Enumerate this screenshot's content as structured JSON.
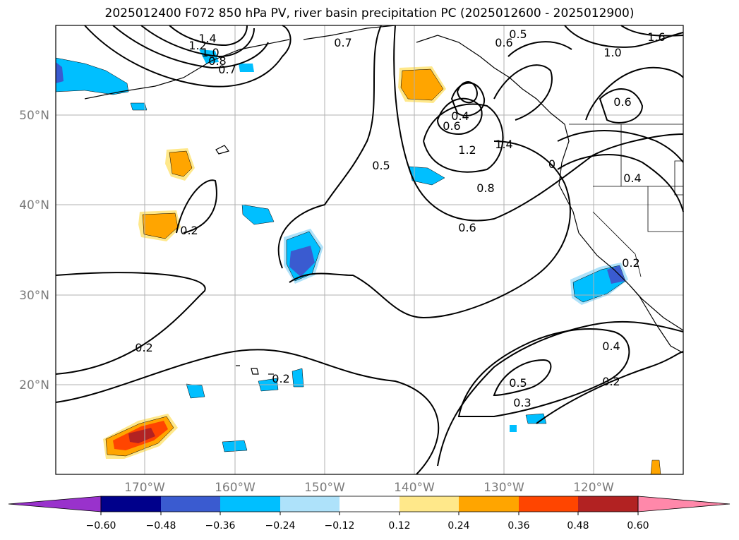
{
  "title": "2025012400 F072 850 hPa PV, river basin precipitation PC (2025012600 - 2025012900)",
  "lat_labels": [
    "50°N",
    "40°N",
    "30°N",
    "20°N"
  ],
  "lon_labels": [
    "170°W",
    "160°W",
    "150°W",
    "140°W",
    "130°W",
    "120°W"
  ],
  "contour_labels": [
    "1.4",
    "1.2",
    "1.0",
    "0.8",
    "0.7",
    "0.7",
    "0.5",
    "0.6",
    "1.0",
    "1.6",
    "0.6",
    "0.4",
    "0.6",
    "1.2",
    "1.4",
    "0",
    "0.5",
    "0.8",
    "0.6",
    "0.4",
    "0.2",
    "0.2",
    "0.2",
    "0.2",
    "0.4",
    "0.5",
    "0.3",
    "0.2"
  ],
  "colorbar": {
    "ticks": [
      "−0.60",
      "−0.48",
      "−0.36",
      "−0.24",
      "−0.12",
      "0.12",
      "0.24",
      "0.36",
      "0.48",
      "0.60"
    ],
    "colors": [
      "#9932cc",
      "#00008b",
      "#3a5bd0",
      "#00bfff",
      "#aee2fa",
      "#ffffff",
      "#ffe88a",
      "#ffa500",
      "#ff4500",
      "#b22222",
      "#ff88aa"
    ]
  }
}
